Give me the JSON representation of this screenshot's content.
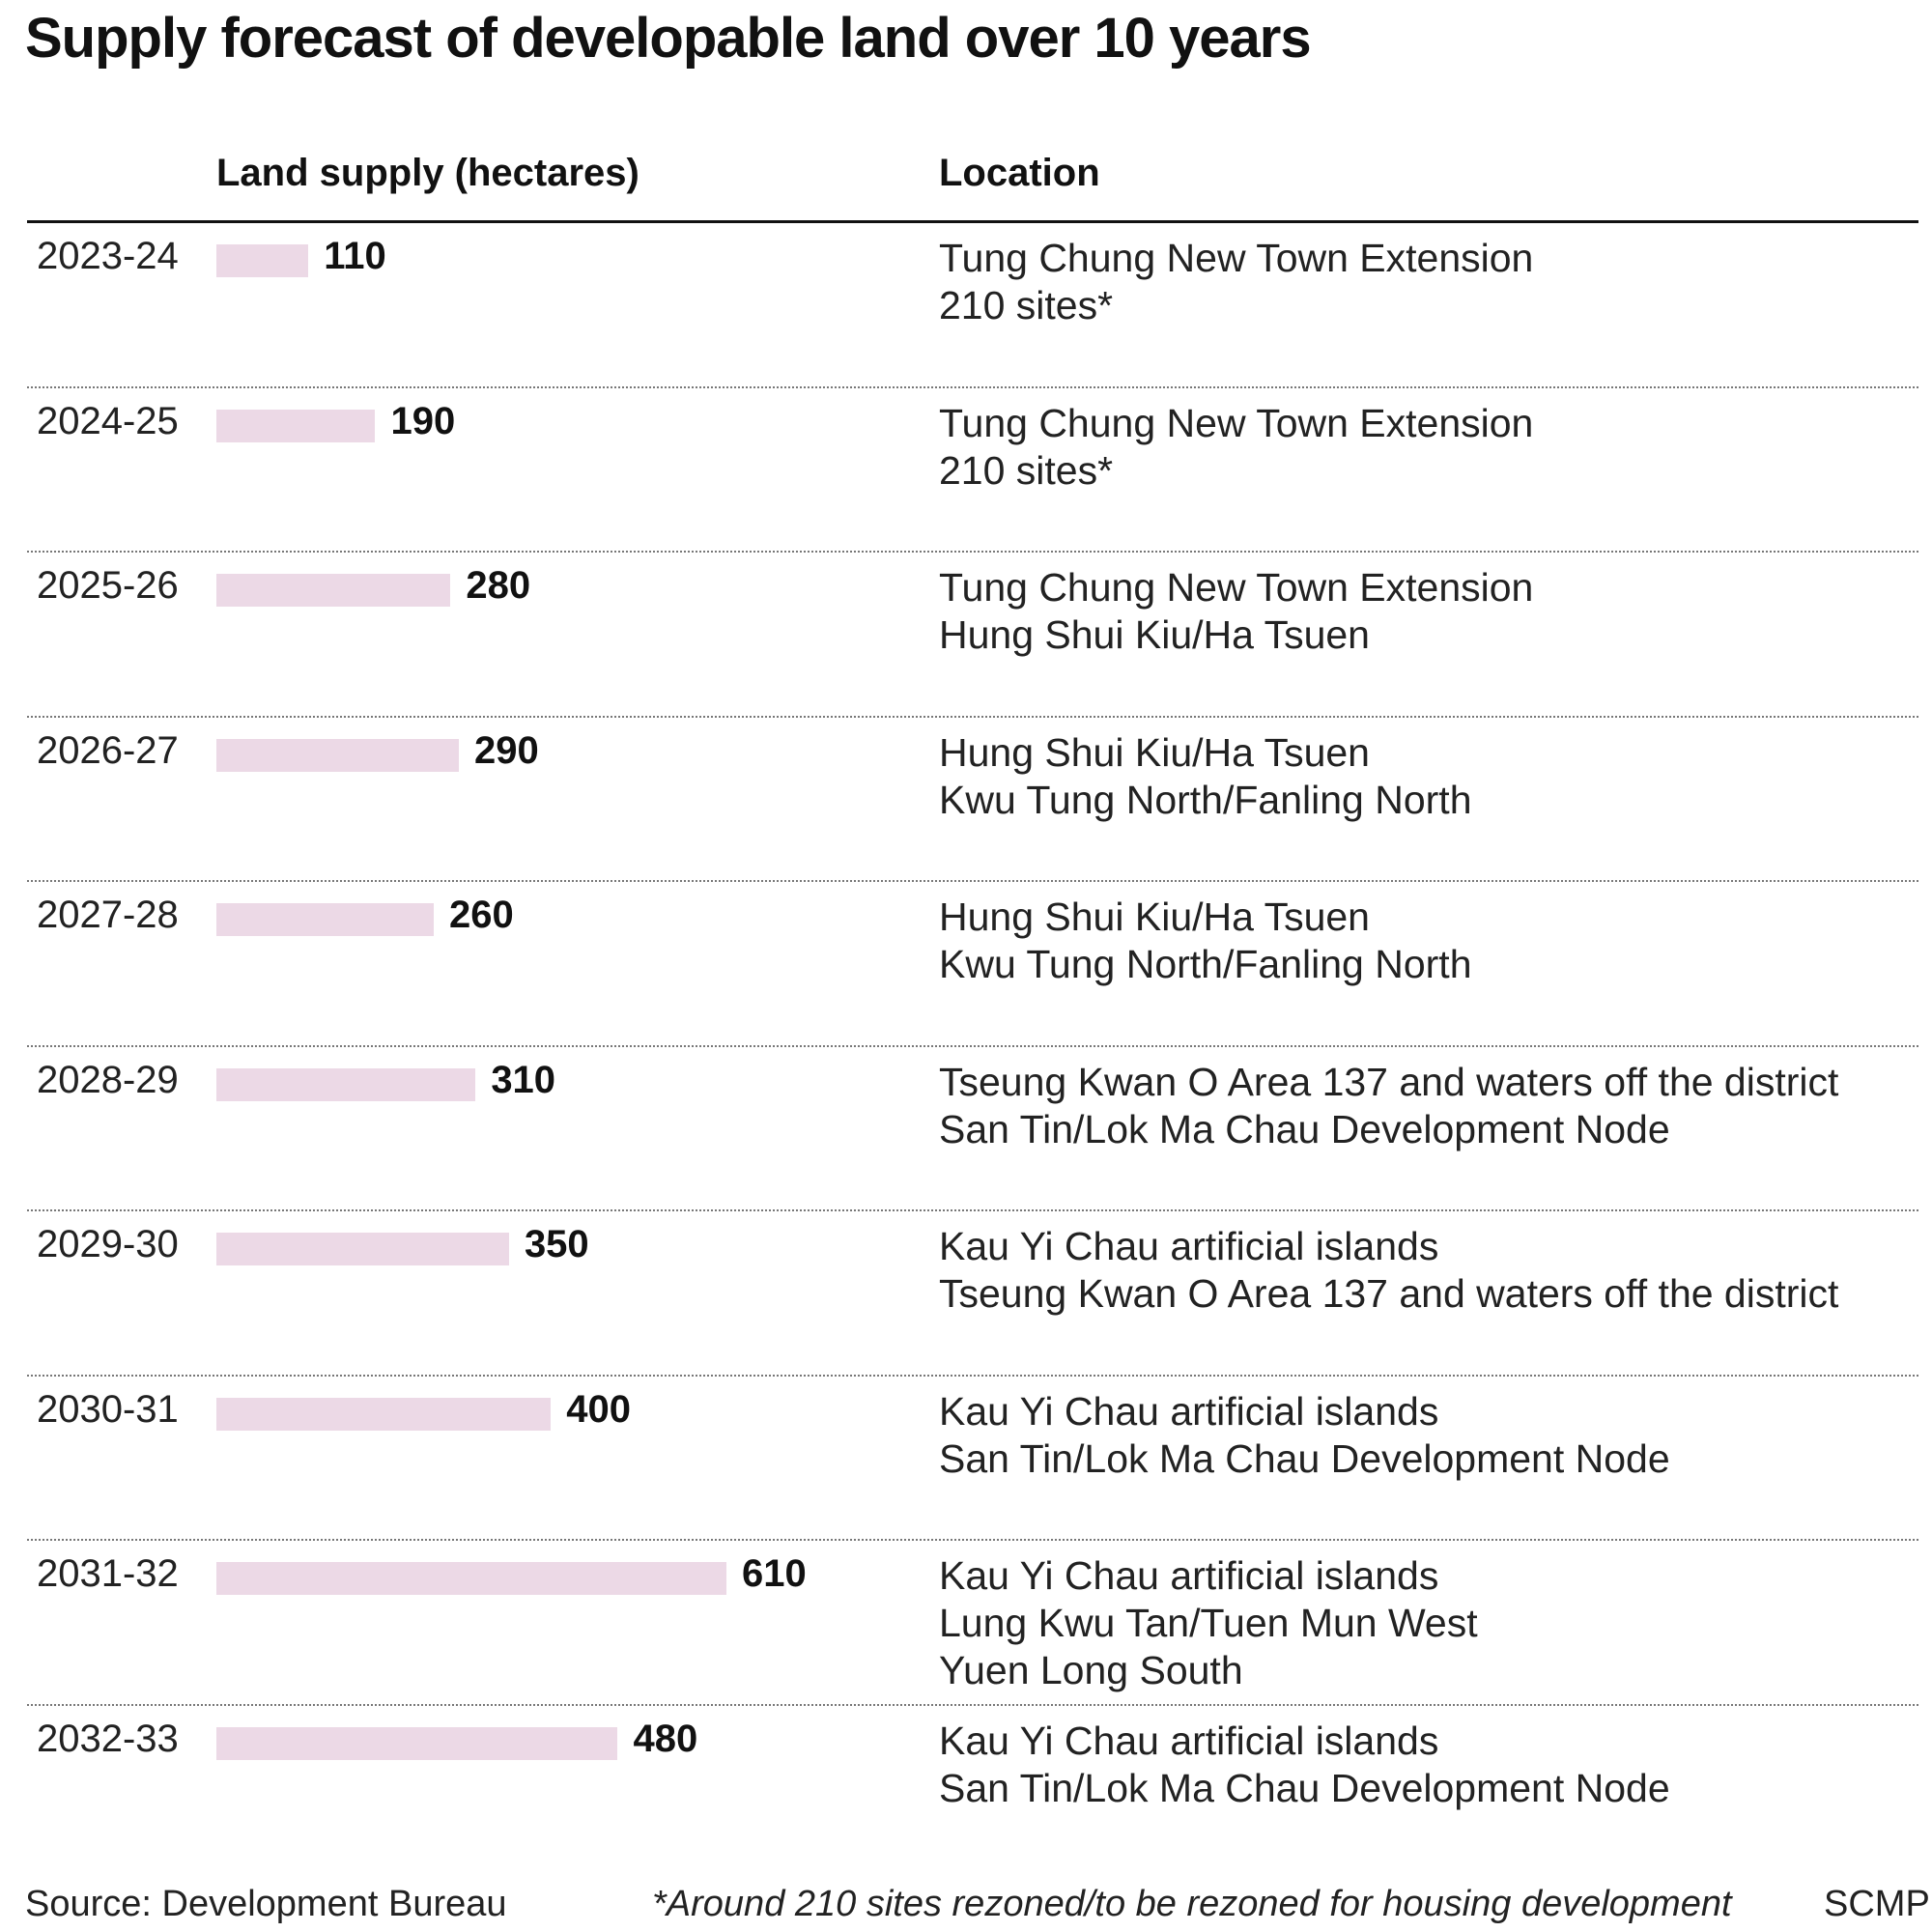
{
  "header": {
    "title": "Supply forecast of developable land over 10 years",
    "supply_label": "Land supply (hectares)",
    "location_label": "Location"
  },
  "chart_data": {
    "type": "bar",
    "orientation": "horizontal",
    "title": "Supply forecast of developable land over 10 years",
    "xlabel": "Land supply (hectares)",
    "categories": [
      "2023-24",
      "2024-25",
      "2025-26",
      "2026-27",
      "2027-28",
      "2028-29",
      "2029-30",
      "2030-31",
      "2031-32",
      "2032-33"
    ],
    "values": [
      110,
      190,
      280,
      290,
      260,
      310,
      350,
      400,
      610,
      480
    ],
    "xlim": [
      0,
      610
    ],
    "bar_color": "#ecd9e6",
    "grid": false,
    "locations": [
      [
        "Tung Chung New Town Extension",
        "210 sites*"
      ],
      [
        "Tung Chung New Town Extension",
        "210 sites*"
      ],
      [
        "Tung Chung New Town Extension",
        "Hung Shui Kiu/Ha Tsuen"
      ],
      [
        "Hung Shui Kiu/Ha Tsuen",
        "Kwu Tung North/Fanling North"
      ],
      [
        "Hung Shui Kiu/Ha Tsuen",
        "Kwu Tung North/Fanling North"
      ],
      [
        "Tseung Kwan O Area 137 and waters off the district",
        "San Tin/Lok Ma Chau Development Node"
      ],
      [
        "Kau Yi Chau artificial islands",
        "Tseung Kwan O Area 137 and waters off the district"
      ],
      [
        "Kau Yi Chau artificial islands",
        "San Tin/Lok Ma Chau Development Node"
      ],
      [
        "Kau Yi Chau artificial islands",
        "Lung Kwu Tan/Tuen Mun West",
        "Yuen Long South"
      ],
      [
        "Kau Yi Chau artificial islands",
        "San Tin/Lok Ma Chau Development Node"
      ]
    ]
  },
  "footer": {
    "source": "Source: Development Bureau",
    "note": "*Around 210 sites rezoned/to be rezoned for housing development",
    "brand": "SCMP"
  }
}
